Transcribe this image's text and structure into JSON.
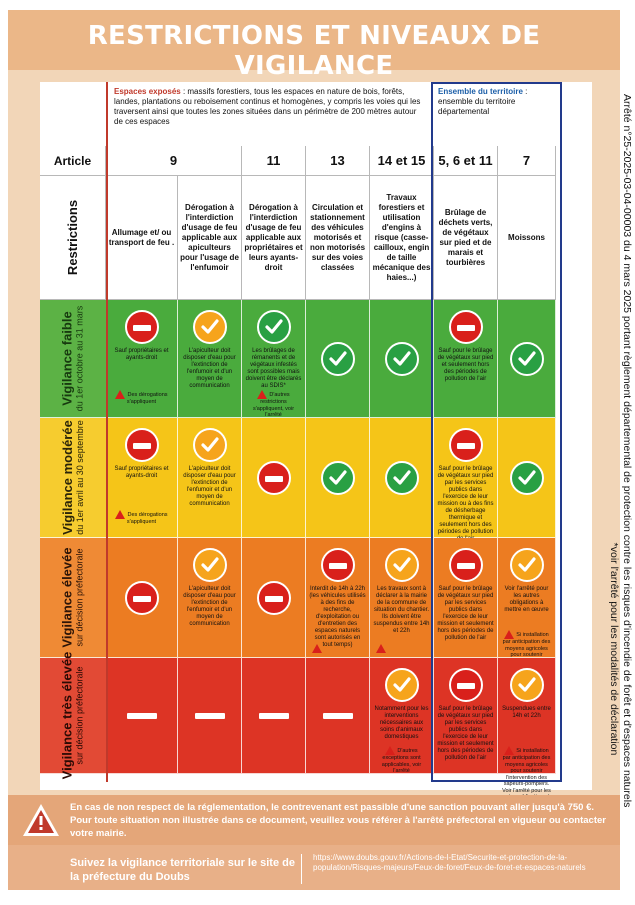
{
  "title": "RESTRICTIONS ET NIVEAUX DE VIGILANCE",
  "zones": {
    "espaces_exposes": {
      "title": "Espaces exposés",
      "text": " : massifs forestiers, tous les espaces en nature de bois, forêts, landes, plantations ou reboisement continus et homogènes, y compris les voies qui les traversent ainsi que toutes les zones situées dans un périmètre de 200 mètres autour de ces espaces"
    },
    "ensemble": {
      "title": "Ensemble du territoire",
      "text": " : ensemble du territoire départemental"
    }
  },
  "header": {
    "article_label": "Article",
    "restrictions_label": "Restrictions"
  },
  "columns": [
    {
      "article": "9",
      "restriction": "Allumage et/ ou transport de feu ."
    },
    {
      "article": "",
      "restriction": "Dérogation à l'interdiction d'usage de feu applicable aux apiculteurs pour l'usage de l'enfumoir"
    },
    {
      "article": "11",
      "restriction": "Dérogation à l'interdiction d'usage de feu applicable aux propriétaires et leurs ayants-droit"
    },
    {
      "article": "13",
      "restriction": "Circulation et stationnement des véhicules motorisés et non motorisés sur des voies classées"
    },
    {
      "article": "14 et 15",
      "restriction": "Travaux forestiers et utilisation d'engins à risque (casse-cailloux, engin de taille mécanique des haies...)"
    },
    {
      "article": "5, 6 et 11",
      "restriction": "Brûlage de déchets verts, de végétaux sur pied et de marais et tourbières"
    },
    {
      "article": "7",
      "restriction": "Moissons"
    }
  ],
  "rows": [
    {
      "label": "Vigilance faible",
      "sub": "du 1er octobre au 31 mars",
      "color": "green",
      "cells": [
        {
          "icon": "forbid-icon",
          "note": "Sauf propriétaires et ayants-droit",
          "small": "Des dérogations s'appliquent",
          "warn": true
        },
        {
          "icon": "check-icon-orange",
          "note": "L'apiculteur doit disposer d'eau pour l'extinction de l'enfumoir et d'un moyen de communication"
        },
        {
          "icon": "check-icon-green",
          "note": "Les brûlages de rémanents et de végétaux infestés sont possibles mais doivent être déclarés au SDIS*",
          "small": "D'autres restrictions s'appliquent, voir l'arrêté",
          "warn": true
        },
        {
          "icon": "check-icon-green"
        },
        {
          "icon": "check-icon-green"
        },
        {
          "icon": "forbid-icon",
          "note": "Sauf pour le brûlage de végétaux sur pied et seulement hors des périodes de pollution de l'air"
        },
        {
          "icon": "check-icon-green"
        }
      ]
    },
    {
      "label": "Vigilance modérée",
      "sub": "du 1er avril au 30 septembre",
      "color": "yellow",
      "cells": [
        {
          "icon": "forbid-icon",
          "note": "Sauf propriétaires et ayants-droit",
          "small": "Des dérogations s'appliquent",
          "warn": true
        },
        {
          "icon": "check-icon-orange",
          "note": "L'apiculteur doit disposer d'eau pour l'extinction de l'enfumoir et d'un moyen de communication"
        },
        {
          "icon": "forbid-icon"
        },
        {
          "icon": "check-icon-green"
        },
        {
          "icon": "check-icon-green"
        },
        {
          "icon": "forbid-icon",
          "note": "Sauf pour le brûlage de végétaux sur pied par les services publics dans l'exercice de leur mission ou à des fins de désherbage thermique et seulement hors des périodes de pollution de l'air"
        },
        {
          "icon": "check-icon-green"
        }
      ]
    },
    {
      "label": "Vigilance élevée",
      "sub": "sur décision préfectorale",
      "color": "orange",
      "cells": [
        {
          "icon": "forbid-icon"
        },
        {
          "icon": "check-icon-orange",
          "note": "L'apiculteur doit disposer d'eau pour l'extinction de l'enfumoir et d'un moyen de communication"
        },
        {
          "icon": "forbid-icon"
        },
        {
          "icon": "forbid-icon",
          "note": "Interdit de 14h à 22h (les véhicules utilisés à des fins de recherche, d'exploitation ou d'entretien des espaces naturels sont autorisés en tout temps)",
          "warn": true
        },
        {
          "icon": "check-icon-orange",
          "note": "Les travaux sont à déclarer à la mairie de la commune de situation du chantier. Ils doivent être suspendus entre 14h et 22h",
          "warn": true
        },
        {
          "icon": "forbid-icon",
          "note": "Sauf pour le brûlage de végétaux sur pied par les services publics dans l'exercice de leur mission et seulement hors des périodes de pollution de l'air"
        },
        {
          "icon": "check-icon-orange",
          "note": "Voir l'arrêté pour les autres obligations à mettre en œuvre",
          "small": "Si installation par anticipation des moyens agricoles pour soutenir l'intervention des sapeurs-pompiers",
          "warn": true
        }
      ]
    },
    {
      "label": "Vigilance très élevée",
      "sub": "sur décision préfectorale",
      "color": "red",
      "cells": [
        {
          "icon": "forbid-icon"
        },
        {
          "icon": "forbid-icon"
        },
        {
          "icon": "forbid-icon"
        },
        {
          "icon": "forbid-icon"
        },
        {
          "icon": "check-icon-orange",
          "note": "Notamment pour les interventions nécessaires aux soins d'animaux domestiques",
          "small": "D'autres exceptions sont applicables, voir l'arrêté",
          "warn": true
        },
        {
          "icon": "forbid-icon",
          "note": "Sauf pour le brûlage de végétaux sur pied par les services publics dans l'exercice de leur mission et seulement hors des périodes de pollution de l'air"
        },
        {
          "icon": "check-icon-orange",
          "note": "Suspendues entre 14h et 22h",
          "small": "Si installation par anticipation des moyens agricoles pour soutenir l'intervention des sapeurs-pompiers. Voir l'arrêté pour les autres obligations à mettre en œuvre",
          "warn": true
        }
      ]
    }
  ],
  "side_text": "Arrêté n°25-2025-03-04-00003 du 4 mars 2025 portant règlement départemental de protection contre les risques d'incendie de forêt et d'espaces naturels",
  "side_note": "*voir l'arrêté pour les modalités de déclaration",
  "footer": {
    "warning": "En cas de non respect de la réglementation, le contrevenant est passible d'une sanction pouvant aller jusqu'à 750 €. Pour toute situation non illustrée dans ce document, veuillez vous référer à l'arrêté préfectoral en vigueur ou contacter votre mairie.",
    "follow": "Suivez la vigilance territoriale sur le site de la préfecture du Doubs",
    "url": "https://www.doubs.gouv.fr/Actions-de-l-Etat/Securite-et-protection-de-la-population/Risques-majeurs/Feux-de-foret/Feux-de-foret-et-espaces-naturels"
  },
  "colors": {
    "green": "#4aab3d",
    "yellow": "#f5c518",
    "orange": "#ec7c22",
    "red": "#dd3425",
    "accent_red": "#c0392b",
    "accent_blue": "#223a8c"
  }
}
